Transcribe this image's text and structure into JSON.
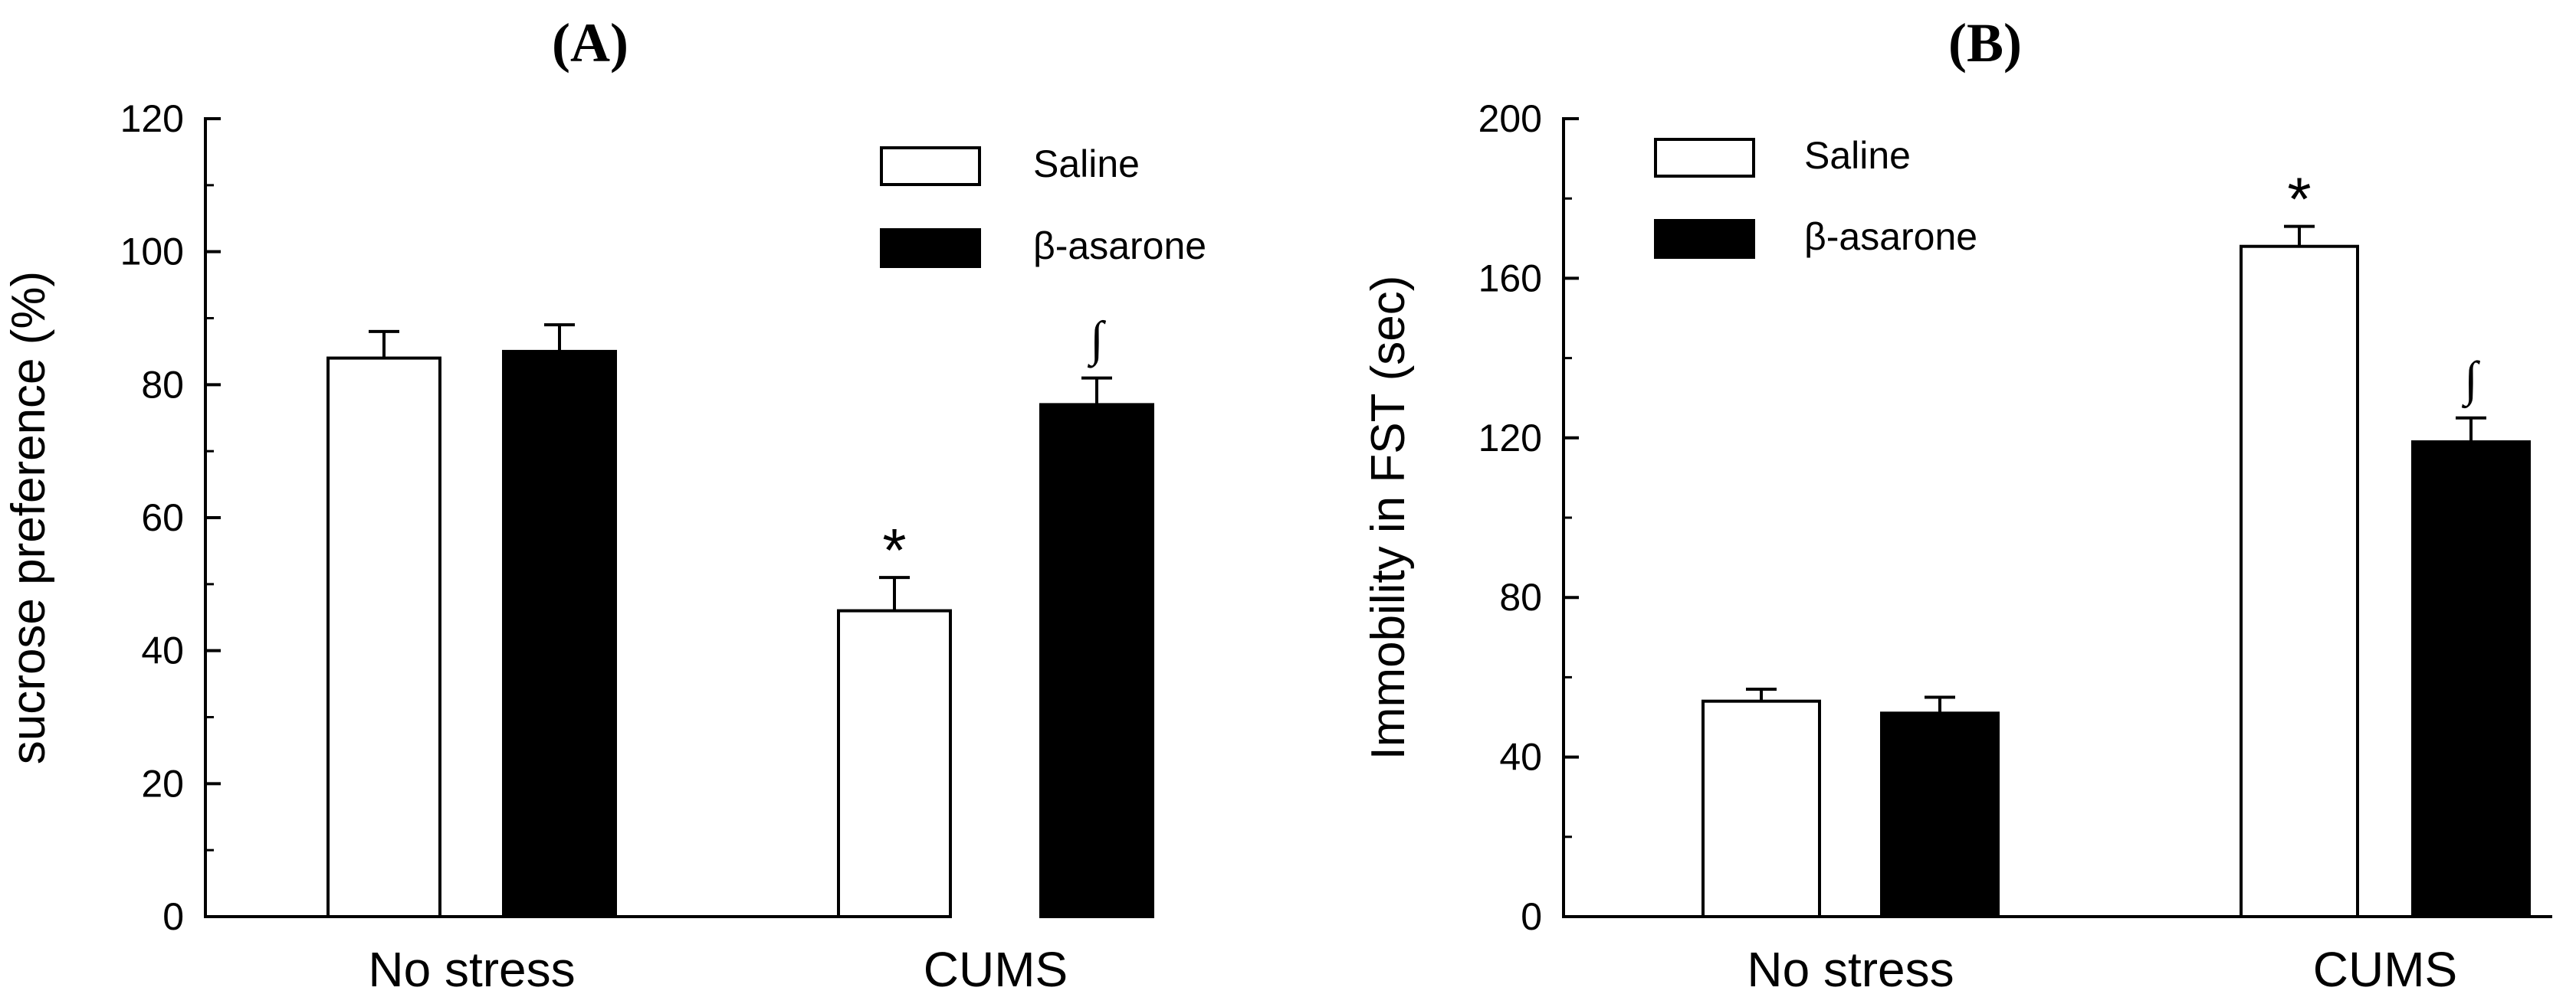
{
  "chart_data": [
    {
      "type": "bar",
      "panel_label": "(A)",
      "categories": [
        "No stress",
        "CUMS"
      ],
      "series": [
        {
          "name": "Saline",
          "values": [
            84,
            46
          ],
          "errors": [
            4,
            5
          ],
          "color": "#ffffff"
        },
        {
          "name": "β-asarone",
          "values": [
            85,
            77
          ],
          "errors": [
            4,
            4
          ],
          "color": "#000000"
        }
      ],
      "annotations": [
        {
          "series": 0,
          "category": 1,
          "text": "*"
        },
        {
          "series": 1,
          "category": 1,
          "text": "∫"
        }
      ],
      "ylabel": "sucrose preference (%)",
      "ylim": [
        0,
        120
      ],
      "yticks": [
        0,
        20,
        40,
        60,
        80,
        100,
        120
      ],
      "legend_position": "top-right",
      "grid": false
    },
    {
      "type": "bar",
      "panel_label": "(B)",
      "categories": [
        "No stress",
        "CUMS"
      ],
      "series": [
        {
          "name": "Saline",
          "values": [
            54,
            168
          ],
          "errors": [
            3,
            5
          ],
          "color": "#ffffff"
        },
        {
          "name": "β-asarone",
          "values": [
            51,
            119
          ],
          "errors": [
            4,
            6
          ],
          "color": "#000000"
        }
      ],
      "annotations": [
        {
          "series": 0,
          "category": 1,
          "text": "*"
        },
        {
          "series": 1,
          "category": 1,
          "text": "∫"
        }
      ],
      "ylabel": "Immobility in FST (sec)",
      "ylim": [
        0,
        200
      ],
      "yticks": [
        0,
        40,
        80,
        120,
        160,
        200
      ],
      "legend_position": "top-left",
      "grid": false
    }
  ]
}
